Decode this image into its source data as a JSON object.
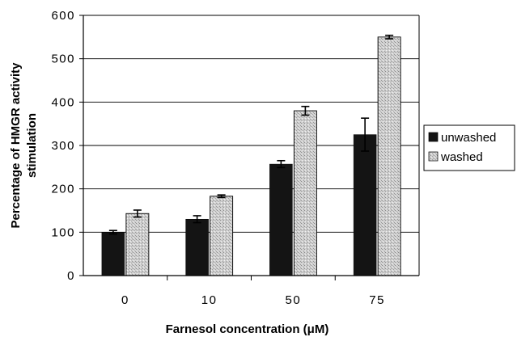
{
  "chart_data": {
    "type": "bar",
    "title": "",
    "xlabel": "Farnesol concentration (μM)",
    "ylabel_lines": [
      "Percentage of HMGR activity",
      "stimulation"
    ],
    "categories": [
      "0",
      "10",
      "50",
      "75"
    ],
    "ylim": [
      0,
      600
    ],
    "yticks": [
      0,
      100,
      200,
      300,
      400,
      500,
      600
    ],
    "grid": "horizontal",
    "legend_position": "right",
    "series": [
      {
        "name": "unwashed",
        "color": "#141414",
        "values": [
          100,
          130,
          257,
          325
        ],
        "errors": [
          4,
          8,
          8,
          38
        ]
      },
      {
        "name": "washed",
        "color": "#c4c4c4",
        "values": [
          143,
          183,
          380,
          550
        ],
        "errors": [
          8,
          3,
          10,
          4
        ]
      }
    ]
  }
}
